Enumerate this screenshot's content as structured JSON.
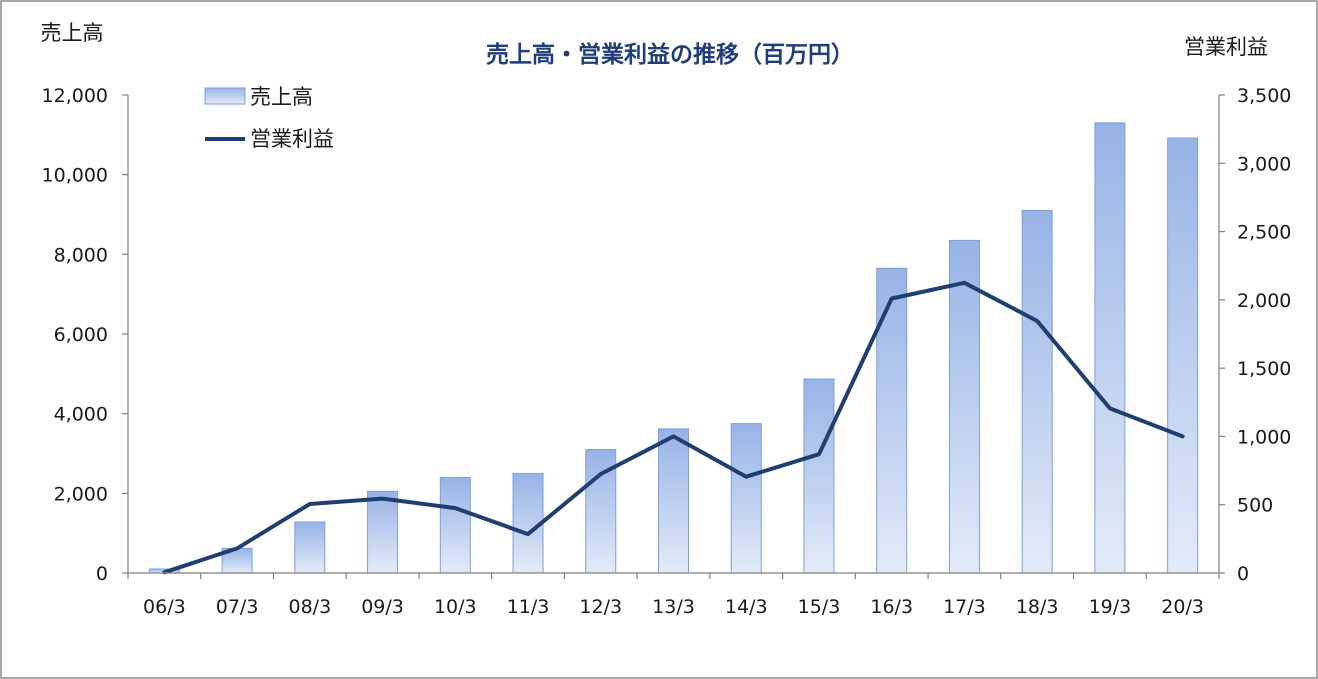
{
  "chart_data": {
    "type": "bar",
    "title": "売上高・営業利益の推移（百万円）",
    "y_left_label": "売上高",
    "y_right_label": "営業利益",
    "categories": [
      "06/3",
      "07/3",
      "08/3",
      "09/3",
      "10/3",
      "11/3",
      "12/3",
      "13/3",
      "14/3",
      "15/3",
      "16/3",
      "17/3",
      "18/3",
      "19/3",
      "20/3"
    ],
    "series": [
      {
        "name": "売上高",
        "type": "bar",
        "axis": "left",
        "values": [
          100,
          620,
          1280,
          2050,
          2400,
          2500,
          3100,
          3620,
          3750,
          4870,
          7650,
          8350,
          9100,
          11300,
          10920
        ]
      },
      {
        "name": "営業利益",
        "type": "line",
        "axis": "right",
        "values": [
          5,
          180,
          505,
          545,
          475,
          285,
          725,
          1000,
          705,
          870,
          2010,
          2125,
          1845,
          1205,
          1000
        ]
      }
    ],
    "y_left": {
      "min": 0,
      "max": 12000,
      "ticks": [
        "0",
        "2,000",
        "4,000",
        "6,000",
        "8,000",
        "10,000",
        "12,000"
      ]
    },
    "y_right": {
      "min": 0,
      "max": 3500,
      "ticks": [
        "0",
        "500",
        "1,000",
        "1,500",
        "2,000",
        "2,500",
        "3,000",
        "3,500"
      ]
    },
    "legend": {
      "position": "top-left"
    },
    "grid": false,
    "colors": {
      "bar_top": "#96b3e6",
      "bar_bottom": "#e3ebf8",
      "bar_edge": "#7f9fd8",
      "line": "#1f3f73",
      "title": "#1f3d7a"
    }
  }
}
